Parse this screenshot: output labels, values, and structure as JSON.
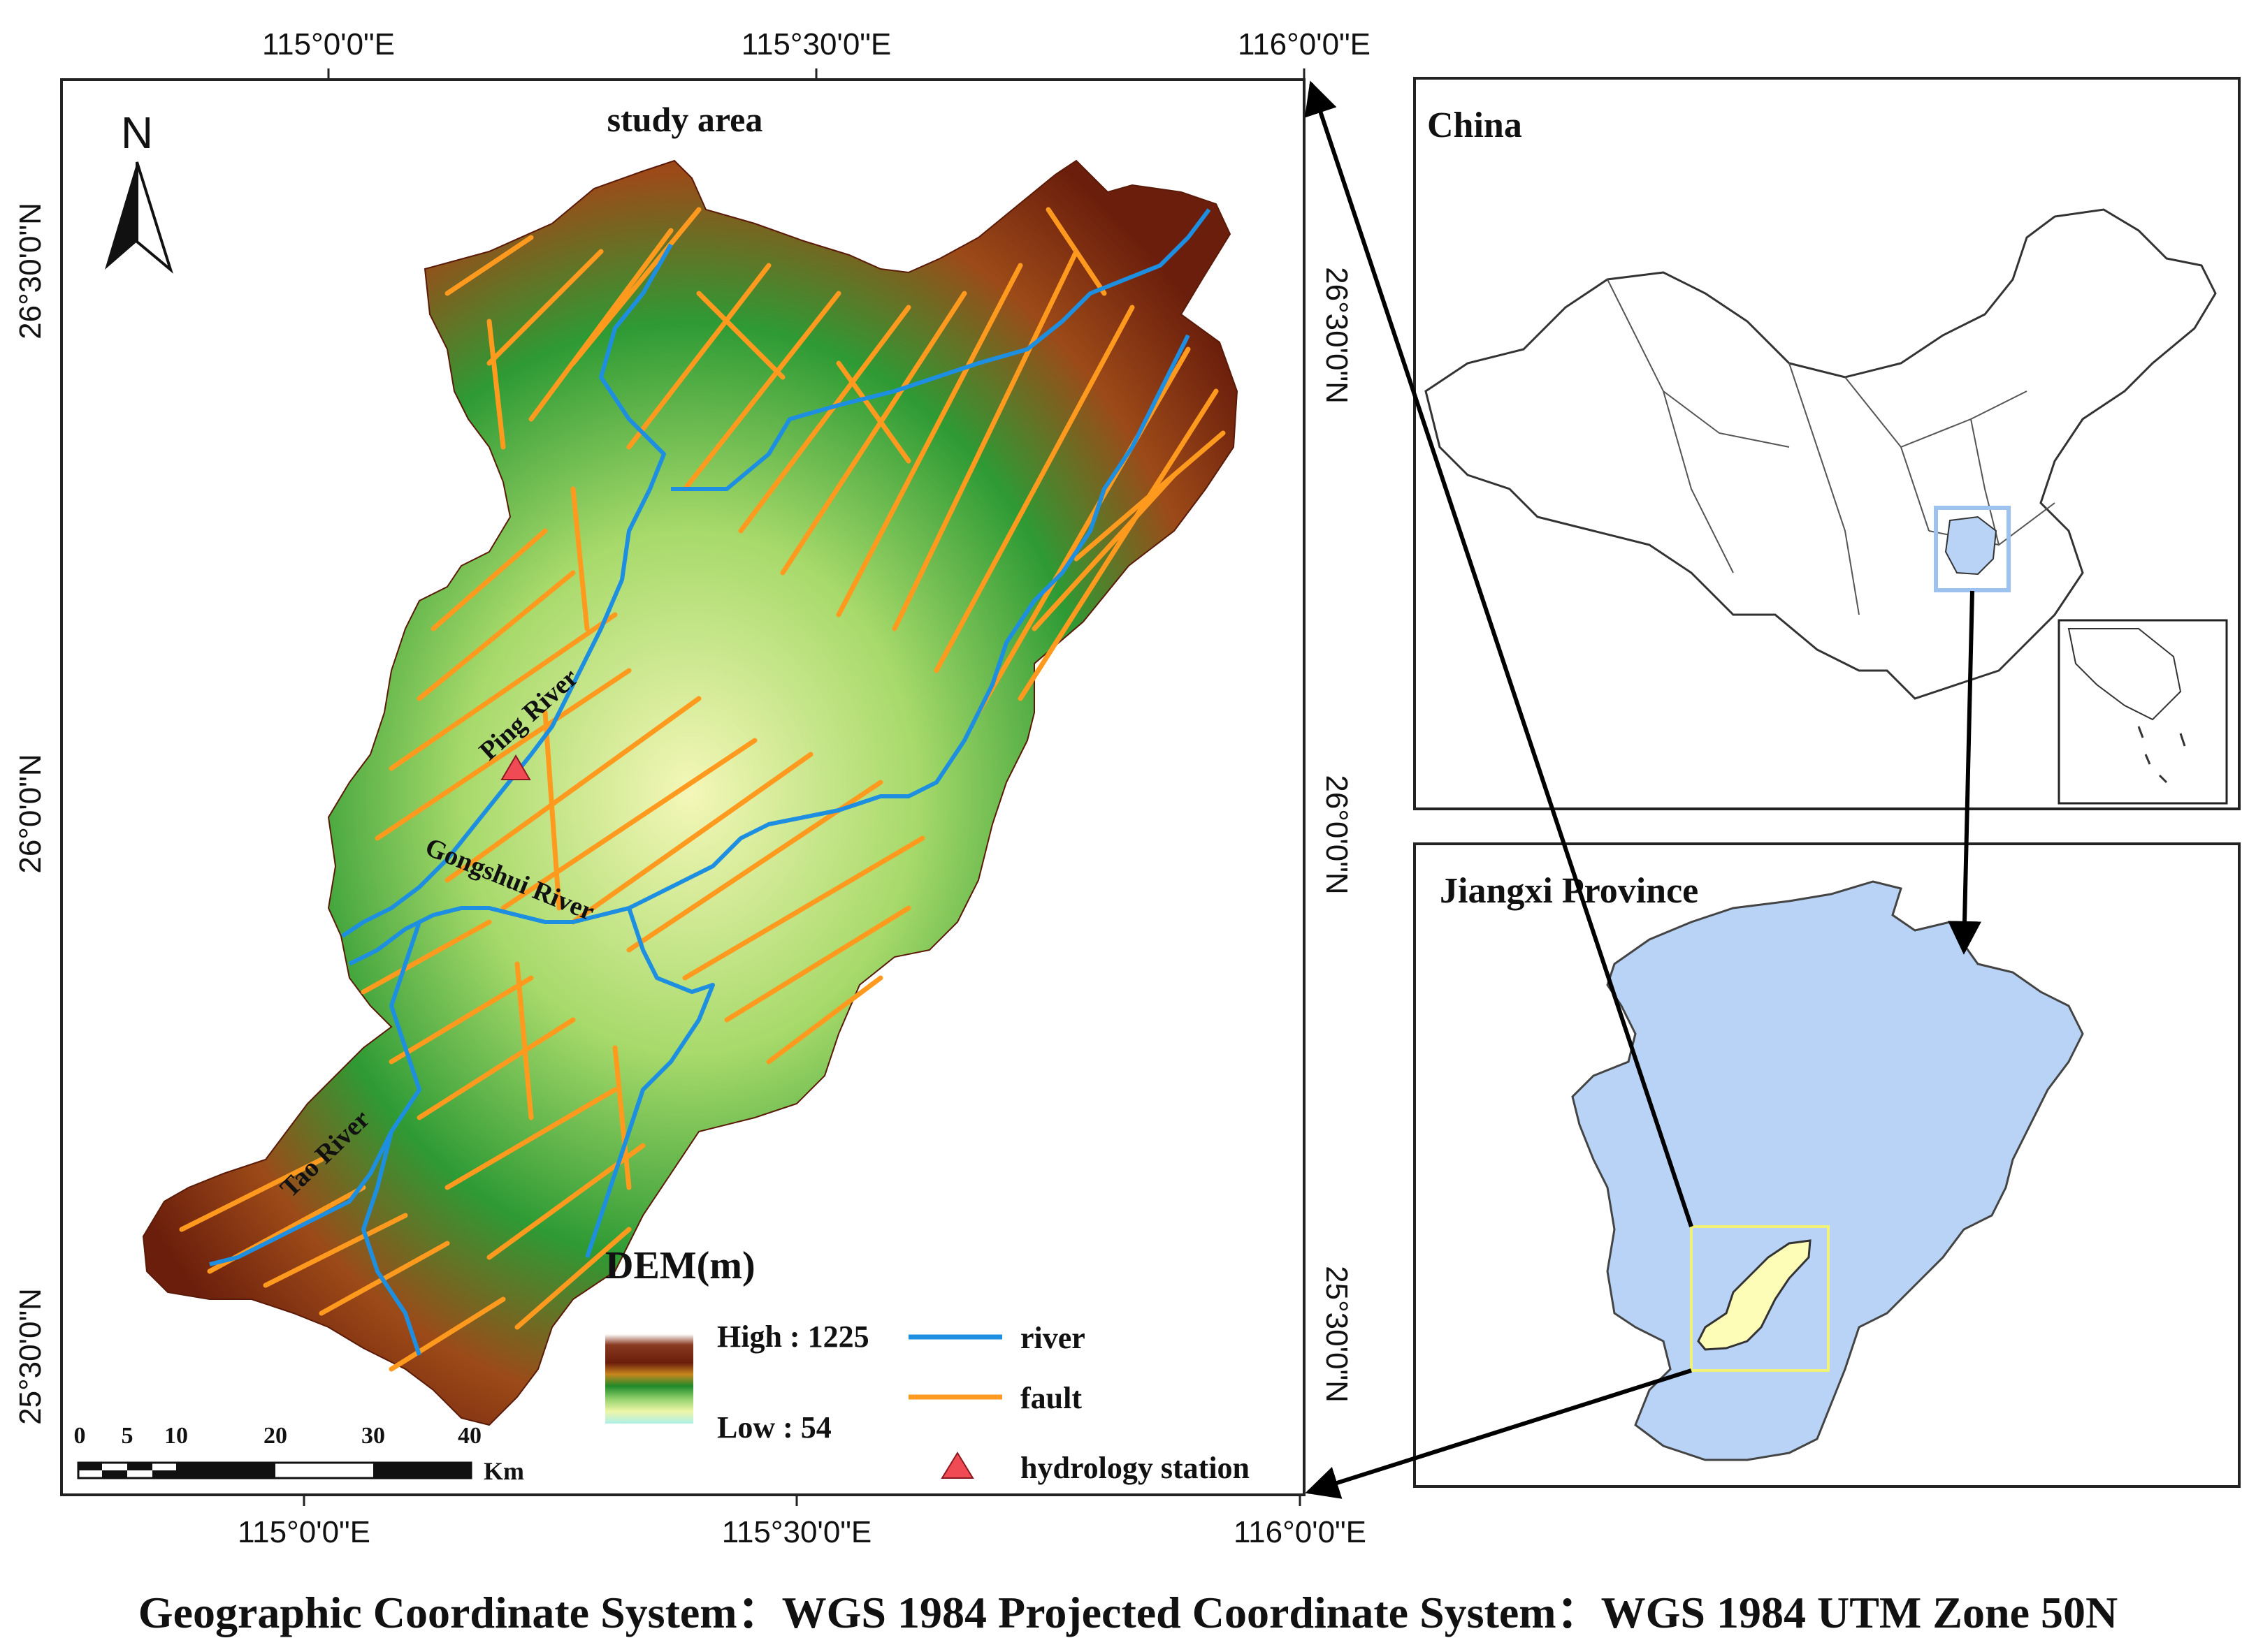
{
  "main_map": {
    "title": "study area",
    "north_label": "N",
    "top_longitudes": [
      "115°0'0\"E",
      "115°30'0\"E",
      "116°0'0\"E"
    ],
    "bottom_longitudes": [
      "115°0'0\"E",
      "115°30'0\"E",
      "116°0'0\"E"
    ],
    "left_latitudes": [
      "26°30'0\"N",
      "26°0'0\"N",
      "25°30'0\"N"
    ],
    "right_latitudes": [
      "26°30'0\"N",
      "26°0'0\"N",
      "25°30'0\"N"
    ],
    "river_labels": [
      "Ping River",
      "Gongshui River",
      "Tao River"
    ],
    "scale_bar": {
      "ticks": [
        "0",
        "5",
        "10",
        "20",
        "30",
        "40"
      ],
      "unit": "Km"
    },
    "legend": {
      "dem_title": "DEM(m)",
      "dem_high": "High : 1225",
      "dem_low": "Low : 54",
      "river": "river",
      "fault": "fault",
      "station": "hydrology station"
    }
  },
  "china_inset": {
    "title": "China"
  },
  "jiangxi_inset": {
    "title": "Jiangxi Province"
  },
  "footer": "Geographic Coordinate System：WGS 1984  Projected Coordinate System：WGS 1984 UTM Zone 50N",
  "colors": {
    "river": "#1e8fe0",
    "fault": "#ff9a1e",
    "dem_high": "#6b1e0c",
    "dem_mid": "#1f8a2a",
    "dem_low": "#f4f7b8",
    "province_fill": "#b9d3f6",
    "study_area_fill": "#fdfdb8"
  }
}
